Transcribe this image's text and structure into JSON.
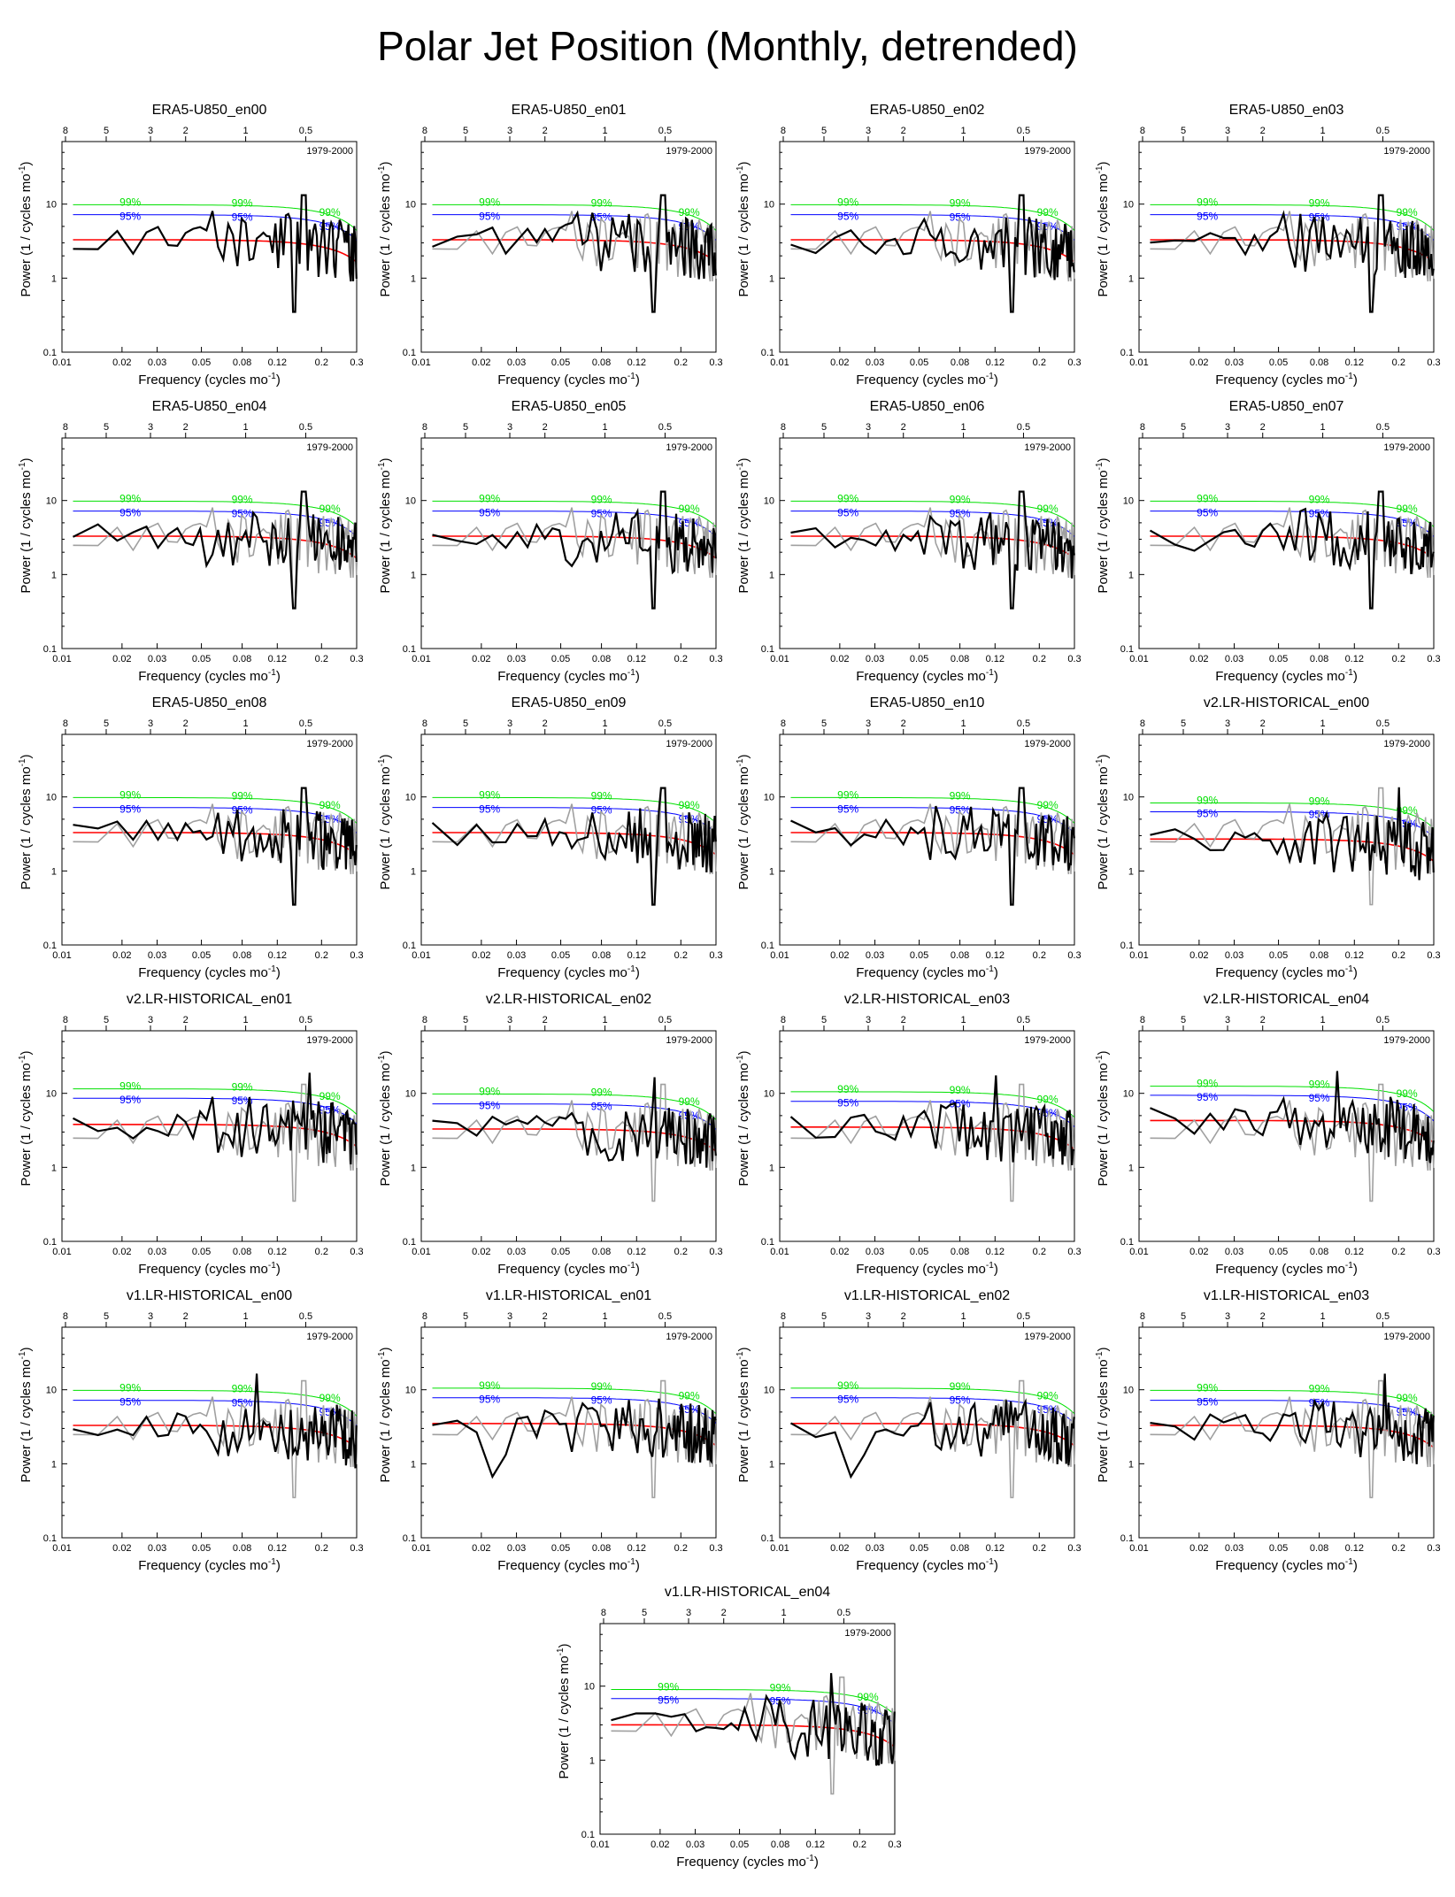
{
  "figure": {
    "title": "Polar Jet Position (Monthly, detrended)"
  },
  "colors": {
    "series_black": "#000000",
    "series_gray": "#a0a0a0",
    "red_noise": "#ff0000",
    "sig99": "#00e000",
    "sig95": "#0000ff"
  },
  "axes_common": {
    "xlabel": "Frequency (cycles mo",
    "xlabel_sup": "-1",
    "xlabel_end": ")",
    "ylabel": "Power (1 / cycles mo",
    "ylabel_sup": "-1",
    "ylabel_end": ")",
    "period_label": "1979-2000",
    "label_99": "99%",
    "label_95": "95%",
    "x_scale": "log",
    "y_scale": "log",
    "xlim": [
      0.01,
      0.3
    ],
    "ylim": [
      0.1,
      70
    ],
    "x_ticks": [
      0.01,
      0.02,
      0.03,
      0.05,
      0.08,
      0.12,
      0.2,
      0.3
    ],
    "x_tick_labels": [
      "0.01",
      "0.02",
      "0.03",
      "0.05",
      "0.08",
      "0.12",
      "0.2",
      "0.3"
    ],
    "y_ticks": [
      0.1,
      1,
      10
    ],
    "y_tick_labels": [
      "0.1",
      "1",
      "10"
    ],
    "top_axis_periods_years": [
      8,
      5,
      3,
      2,
      1,
      0.5
    ],
    "top_tick_labels": [
      "8",
      "5",
      "3",
      "2",
      "1",
      "0.5"
    ]
  },
  "chart_data": [
    {
      "type": "line",
      "title": "ERA5-U850_en00",
      "seed": 11,
      "mode": 0,
      "sig99": 9.8,
      "sig95": 7.2,
      "red": 3.3
    },
    {
      "type": "line",
      "title": "ERA5-U850_en01",
      "seed": 12,
      "mode": 0,
      "sig99": 9.8,
      "sig95": 7.2,
      "red": 3.3
    },
    {
      "type": "line",
      "title": "ERA5-U850_en02",
      "seed": 13,
      "mode": 0,
      "sig99": 9.8,
      "sig95": 7.2,
      "red": 3.3
    },
    {
      "type": "line",
      "title": "ERA5-U850_en03",
      "seed": 14,
      "mode": 0,
      "sig99": 9.8,
      "sig95": 7.2,
      "red": 3.3
    },
    {
      "type": "line",
      "title": "ERA5-U850_en04",
      "seed": 15,
      "mode": 0,
      "sig99": 9.8,
      "sig95": 7.2,
      "red": 3.3
    },
    {
      "type": "line",
      "title": "ERA5-U850_en05",
      "seed": 16,
      "mode": 0,
      "sig99": 9.8,
      "sig95": 7.2,
      "red": 3.3
    },
    {
      "type": "line",
      "title": "ERA5-U850_en06",
      "seed": 17,
      "mode": 0,
      "sig99": 9.8,
      "sig95": 7.2,
      "red": 3.3
    },
    {
      "type": "line",
      "title": "ERA5-U850_en07",
      "seed": 18,
      "mode": 0,
      "sig99": 9.8,
      "sig95": 7.2,
      "red": 3.3
    },
    {
      "type": "line",
      "title": "ERA5-U850_en08",
      "seed": 19,
      "mode": 0,
      "sig99": 9.8,
      "sig95": 7.2,
      "red": 3.3
    },
    {
      "type": "line",
      "title": "ERA5-U850_en09",
      "seed": 20,
      "mode": 0,
      "sig99": 9.8,
      "sig95": 7.2,
      "red": 3.3
    },
    {
      "type": "line",
      "title": "ERA5-U850_en10",
      "seed": 21,
      "mode": 0,
      "sig99": 9.8,
      "sig95": 7.2,
      "red": 3.3
    },
    {
      "type": "line",
      "title": "v2.LR-HISTORICAL_en00",
      "seed": 31,
      "mode": 1,
      "sig99": 8.3,
      "sig95": 6.3,
      "red": 2.7
    },
    {
      "type": "line",
      "title": "v2.LR-HISTORICAL_en01",
      "seed": 32,
      "mode": 1,
      "sig99": 11.5,
      "sig95": 8.6,
      "red": 3.8
    },
    {
      "type": "line",
      "title": "v2.LR-HISTORICAL_en02",
      "seed": 33,
      "mode": 1,
      "sig99": 9.8,
      "sig95": 7.2,
      "red": 3.3
    },
    {
      "type": "line",
      "title": "v2.LR-HISTORICAL_en03",
      "seed": 34,
      "mode": 1,
      "sig99": 10.5,
      "sig95": 7.8,
      "red": 3.5
    },
    {
      "type": "line",
      "title": "v2.LR-HISTORICAL_en04",
      "seed": 35,
      "mode": 1,
      "sig99": 12.5,
      "sig95": 9.4,
      "red": 4.3
    },
    {
      "type": "line",
      "title": "v1.LR-HISTORICAL_en00",
      "seed": 41,
      "mode": 1,
      "sig99": 9.8,
      "sig95": 7.2,
      "red": 3.3
    },
    {
      "type": "line",
      "title": "v1.LR-HISTORICAL_en01",
      "seed": 42,
      "mode": 2,
      "sig99": 10.5,
      "sig95": 7.8,
      "red": 3.5
    },
    {
      "type": "line",
      "title": "v1.LR-HISTORICAL_en02",
      "seed": 43,
      "mode": 2,
      "sig99": 10.5,
      "sig95": 7.8,
      "red": 3.5
    },
    {
      "type": "line",
      "title": "v1.LR-HISTORICAL_en03",
      "seed": 44,
      "mode": 1,
      "sig99": 9.8,
      "sig95": 7.2,
      "red": 3.3
    },
    {
      "type": "line",
      "title": "v1.LR-HISTORICAL_en04",
      "seed": 45,
      "mode": 1,
      "sig99": 9.0,
      "sig95": 6.8,
      "red": 3.0
    }
  ]
}
